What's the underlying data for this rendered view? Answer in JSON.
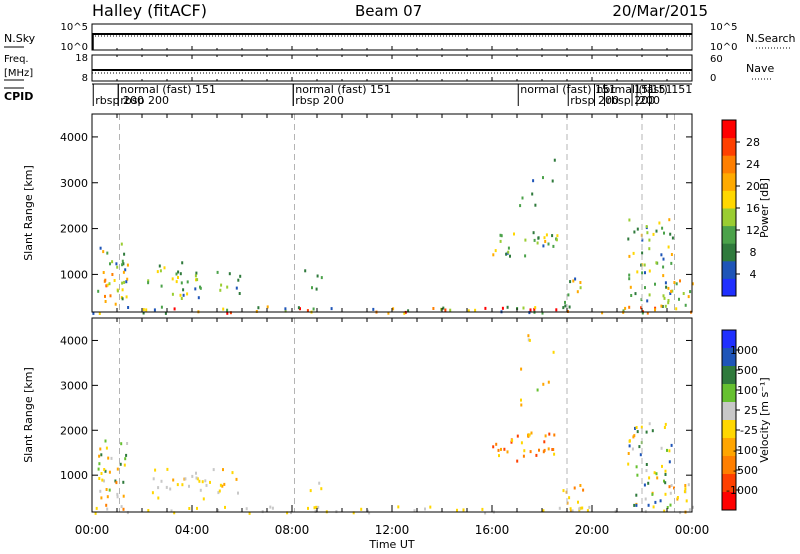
{
  "header": {
    "station": "Halley (fitACF)",
    "beam": "Beam 07",
    "date": "20/Mar/2015"
  },
  "top_panels": {
    "nsky_label": "N.Sky",
    "nsky_ticks": [
      "10^5",
      "10^0"
    ],
    "nsearch_label": "N.Search",
    "nsearch_ticks": [
      "10^5",
      "10^0"
    ],
    "freq_label": "Freq.",
    "freq_unit": "[MHz]",
    "freq_ticks": [
      "18",
      "8"
    ],
    "nave_label": "Nave",
    "nave_ticks": [
      "60",
      "0"
    ],
    "cpid_label": "CPID"
  },
  "cpid_annotations": [
    {
      "t": 0.05,
      "row": 2,
      "text": "rbsp 200"
    },
    {
      "t": 1.05,
      "row": 1,
      "text": "normal (fast) 151"
    },
    {
      "t": 1.05,
      "row": 2,
      "text": "rbsp 200"
    },
    {
      "t": 8.05,
      "row": 1,
      "text": "normal (fast) 151"
    },
    {
      "t": 8.05,
      "row": 2,
      "text": "rbsp 200"
    },
    {
      "t": 17.05,
      "row": 1,
      "text": "normal (fast) 151"
    },
    {
      "t": 19.05,
      "row": 2,
      "text": "rbsp 200"
    },
    {
      "t": 20.1,
      "row": 1,
      "text": "normal (fast) 151"
    },
    {
      "t": 20.5,
      "row": 2,
      "text": "rbsp 200"
    },
    {
      "t": 21.6,
      "row": 1,
      "text": "151"
    },
    {
      "t": 22.3,
      "row": 1,
      "text": "151"
    },
    {
      "t": 21.8,
      "row": 2,
      "text": "200"
    }
  ],
  "chart_data": [
    {
      "type": "heatmap",
      "name": "power",
      "ylabel": "Slant Range [km]",
      "ylim": [
        180,
        4500
      ],
      "xlim": [
        0,
        24
      ],
      "y_ticks": [
        1000,
        2000,
        3000,
        4000
      ],
      "colorbar": {
        "label": "Power [dB]",
        "range": [
          0,
          30
        ],
        "ticks": [
          "4",
          "8",
          "12",
          "16",
          "20",
          "24",
          "28"
        ],
        "colors": [
          "#2030ff",
          "#1f55b8",
          "#2f7a3c",
          "#4ba24a",
          "#9acd32",
          "#ffd700",
          "#ffaa00",
          "#ff7f00",
          "#ff4000",
          "#ff0000"
        ]
      },
      "scatter_regions": [
        {
          "t0": 0.2,
          "t1": 1.4,
          "r0": 250,
          "r1": 1700,
          "density": 0.55,
          "vmin": 4,
          "vmax": 26
        },
        {
          "t0": 2.2,
          "t1": 3.0,
          "r0": 700,
          "r1": 1300,
          "density": 0.35,
          "vmin": 4,
          "vmax": 16
        },
        {
          "t0": 3.0,
          "t1": 4.6,
          "r0": 500,
          "r1": 1300,
          "density": 0.45,
          "vmin": 4,
          "vmax": 18
        },
        {
          "t0": 4.6,
          "t1": 5.9,
          "r0": 600,
          "r1": 1100,
          "density": 0.35,
          "vmin": 4,
          "vmax": 14
        },
        {
          "t0": 8.2,
          "t1": 9.2,
          "r0": 700,
          "r1": 1200,
          "density": 0.25,
          "vmin": 4,
          "vmax": 10
        },
        {
          "t0": 16.0,
          "t1": 18.6,
          "r0": 1400,
          "r1": 2000,
          "density": 0.45,
          "vmin": 4,
          "vmax": 20
        },
        {
          "t0": 17.0,
          "t1": 18.5,
          "r0": 2500,
          "r1": 3800,
          "density": 0.1,
          "vmin": 4,
          "vmax": 10
        },
        {
          "t0": 18.8,
          "t1": 19.8,
          "r0": 200,
          "r1": 1000,
          "density": 0.35,
          "vmin": 4,
          "vmax": 28
        },
        {
          "t0": 21.4,
          "t1": 23.2,
          "r0": 300,
          "r1": 2300,
          "density": 0.4,
          "vmin": 4,
          "vmax": 20
        },
        {
          "t0": 23.0,
          "t1": 24.0,
          "r0": 200,
          "r1": 900,
          "density": 0.5,
          "vmin": 4,
          "vmax": 24
        },
        {
          "t0": 0.0,
          "t1": 24.0,
          "r0": 180,
          "r1": 330,
          "density": 0.45,
          "vmin": 4,
          "vmax": 30
        }
      ]
    },
    {
      "type": "heatmap",
      "name": "velocity",
      "ylabel": "Slant Range [km]",
      "xlabel": "Time UT",
      "ylim": [
        180,
        4500
      ],
      "xlim": [
        0,
        24
      ],
      "y_ticks": [
        1000,
        2000,
        3000,
        4000
      ],
      "x_ticks": [
        "00:00",
        "04:00",
        "08:00",
        "12:00",
        "16:00",
        "20:00",
        "00:00"
      ],
      "colorbar": {
        "label": "Velocity [m s⁻¹]",
        "ticks": [
          "1000",
          "500",
          "100",
          "25",
          "-25",
          "-100",
          "-500",
          "-1000"
        ],
        "colors": [
          "#2030ff",
          "#1f55b8",
          "#2f7a3c",
          "#66c030",
          "#c8c8c8",
          "#ffd700",
          "#ffa500",
          "#ff7f00",
          "#ff4000",
          "#ff0000"
        ]
      },
      "scatter_regions": [
        {
          "t0": 0.2,
          "t1": 1.4,
          "r0": 250,
          "r1": 1800,
          "density": 0.5,
          "vmin": -500,
          "vmax": 500
        },
        {
          "t0": 2.2,
          "t1": 5.9,
          "r0": 500,
          "r1": 1200,
          "density": 0.35,
          "vmin": -300,
          "vmax": 200
        },
        {
          "t0": 8.2,
          "t1": 9.2,
          "r0": 600,
          "r1": 1000,
          "density": 0.2,
          "vmin": -200,
          "vmax": 50
        },
        {
          "t0": 16.0,
          "t1": 18.6,
          "r0": 1300,
          "r1": 2000,
          "density": 0.45,
          "vmin": -700,
          "vmax": -100
        },
        {
          "t0": 17.0,
          "t1": 18.5,
          "r0": 2500,
          "r1": 4200,
          "density": 0.1,
          "vmin": -400,
          "vmax": 300
        },
        {
          "t0": 18.8,
          "t1": 19.8,
          "r0": 200,
          "r1": 1000,
          "density": 0.35,
          "vmin": -500,
          "vmax": -50
        },
        {
          "t0": 21.4,
          "t1": 23.2,
          "r0": 300,
          "r1": 2200,
          "density": 0.4,
          "vmin": -300,
          "vmax": 800
        },
        {
          "t0": 23.0,
          "t1": 24.0,
          "r0": 200,
          "r1": 900,
          "density": 0.5,
          "vmin": -500,
          "vmax": 300
        },
        {
          "t0": 0.0,
          "t1": 24.0,
          "r0": 180,
          "r1": 330,
          "density": 0.35,
          "vmin": -50,
          "vmax": 50
        }
      ]
    }
  ],
  "colors": {
    "axis": "#000000",
    "dashed_marker": "#b4b4b4",
    "series_line": "#000000"
  }
}
